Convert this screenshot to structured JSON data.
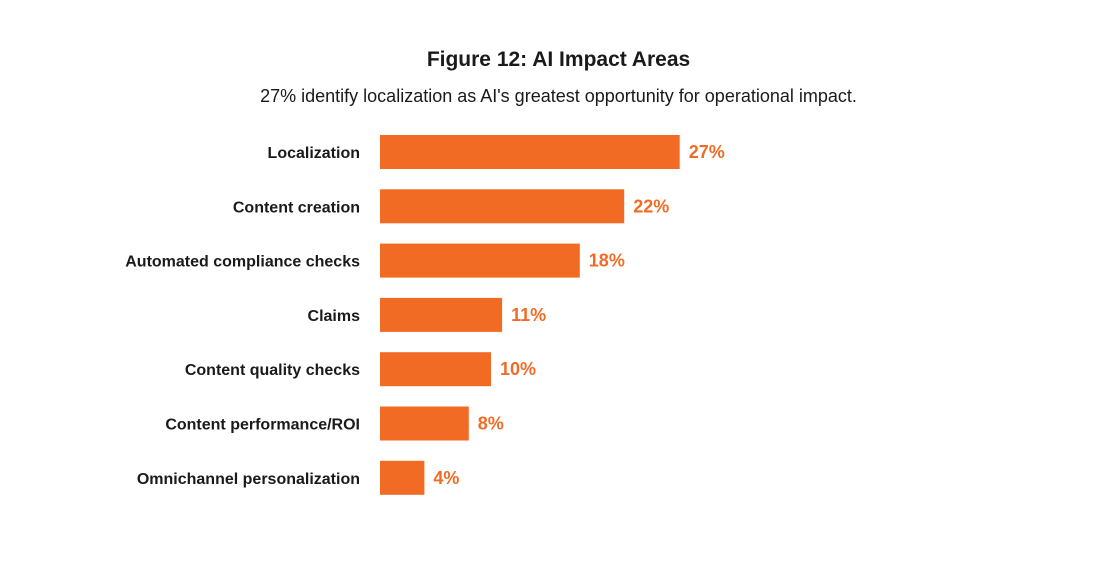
{
  "chart_data": {
    "type": "bar",
    "orientation": "horizontal",
    "title": "Figure 12: AI Impact Areas",
    "subtitle": "27% identify localization as AI's greatest opportunity for operational impact.",
    "categories": [
      "Localization",
      "Content creation",
      "Automated compliance checks",
      "Claims",
      "Content quality checks",
      "Content performance/ROI",
      "Omnichannel personalization"
    ],
    "values": [
      27,
      22,
      18,
      11,
      10,
      8,
      4
    ],
    "value_labels": [
      "27%",
      "22%",
      "18%",
      "11%",
      "10%",
      "8%",
      "4%"
    ],
    "unit": "%",
    "bar_color": "#f26b25",
    "label_color": "#f26b25",
    "grid": false,
    "legend": "none"
  }
}
